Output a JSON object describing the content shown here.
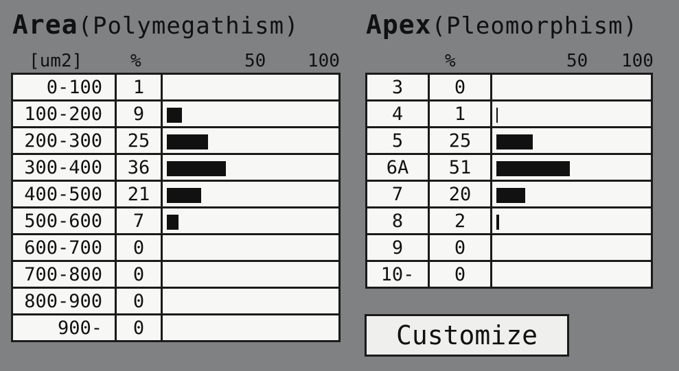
{
  "area": {
    "title": "Area",
    "subtitle": "(Polymegathism)",
    "unit_header": "[um2]",
    "pct_header": "%",
    "scale_mid": "50",
    "scale_max": "100",
    "rows": [
      {
        "range": "0-100",
        "pct": "1"
      },
      {
        "range": "100-200",
        "pct": "9"
      },
      {
        "range": "200-300",
        "pct": "25"
      },
      {
        "range": "300-400",
        "pct": "36"
      },
      {
        "range": "400-500",
        "pct": "21"
      },
      {
        "range": "500-600",
        "pct": "7"
      },
      {
        "range": "600-700",
        "pct": "0"
      },
      {
        "range": "700-800",
        "pct": "0"
      },
      {
        "range": "800-900",
        "pct": "0"
      },
      {
        "range": "900-",
        "pct": "0"
      }
    ]
  },
  "apex": {
    "title": "Apex",
    "subtitle": "(Pleomorphism)",
    "pct_header": "%",
    "scale_mid": "50",
    "scale_max": "100",
    "rows": [
      {
        "range": "3",
        "pct": "0"
      },
      {
        "range": "4",
        "pct": "1"
      },
      {
        "range": "5",
        "pct": "25"
      },
      {
        "range": "6A",
        "pct": "51"
      },
      {
        "range": "7",
        "pct": "20"
      },
      {
        "range": "8",
        "pct": "2"
      },
      {
        "range": "9",
        "pct": "0"
      },
      {
        "range": "10-",
        "pct": "0"
      }
    ]
  },
  "customize_label": "Customize",
  "colors": {
    "background": "#7f8183",
    "bar": "#111111",
    "cell": "#f7f7f5"
  },
  "chart_data": [
    {
      "type": "bar",
      "orientation": "horizontal",
      "title": "Area(Polymegathism)",
      "xlabel": "%",
      "ylabel": "[um2]",
      "xlim": [
        0,
        100
      ],
      "categories": [
        "0-100",
        "100-200",
        "200-300",
        "300-400",
        "400-500",
        "500-600",
        "600-700",
        "700-800",
        "800-900",
        "900-"
      ],
      "values": [
        1,
        9,
        25,
        36,
        21,
        7,
        0,
        0,
        0,
        0
      ]
    },
    {
      "type": "bar",
      "orientation": "horizontal",
      "title": "Apex(Pleomorphism)",
      "xlabel": "%",
      "xlim": [
        0,
        100
      ],
      "categories": [
        "3",
        "4",
        "5",
        "6A",
        "7",
        "8",
        "9",
        "10-"
      ],
      "values": [
        0,
        1,
        25,
        51,
        20,
        2,
        0,
        0
      ]
    }
  ]
}
